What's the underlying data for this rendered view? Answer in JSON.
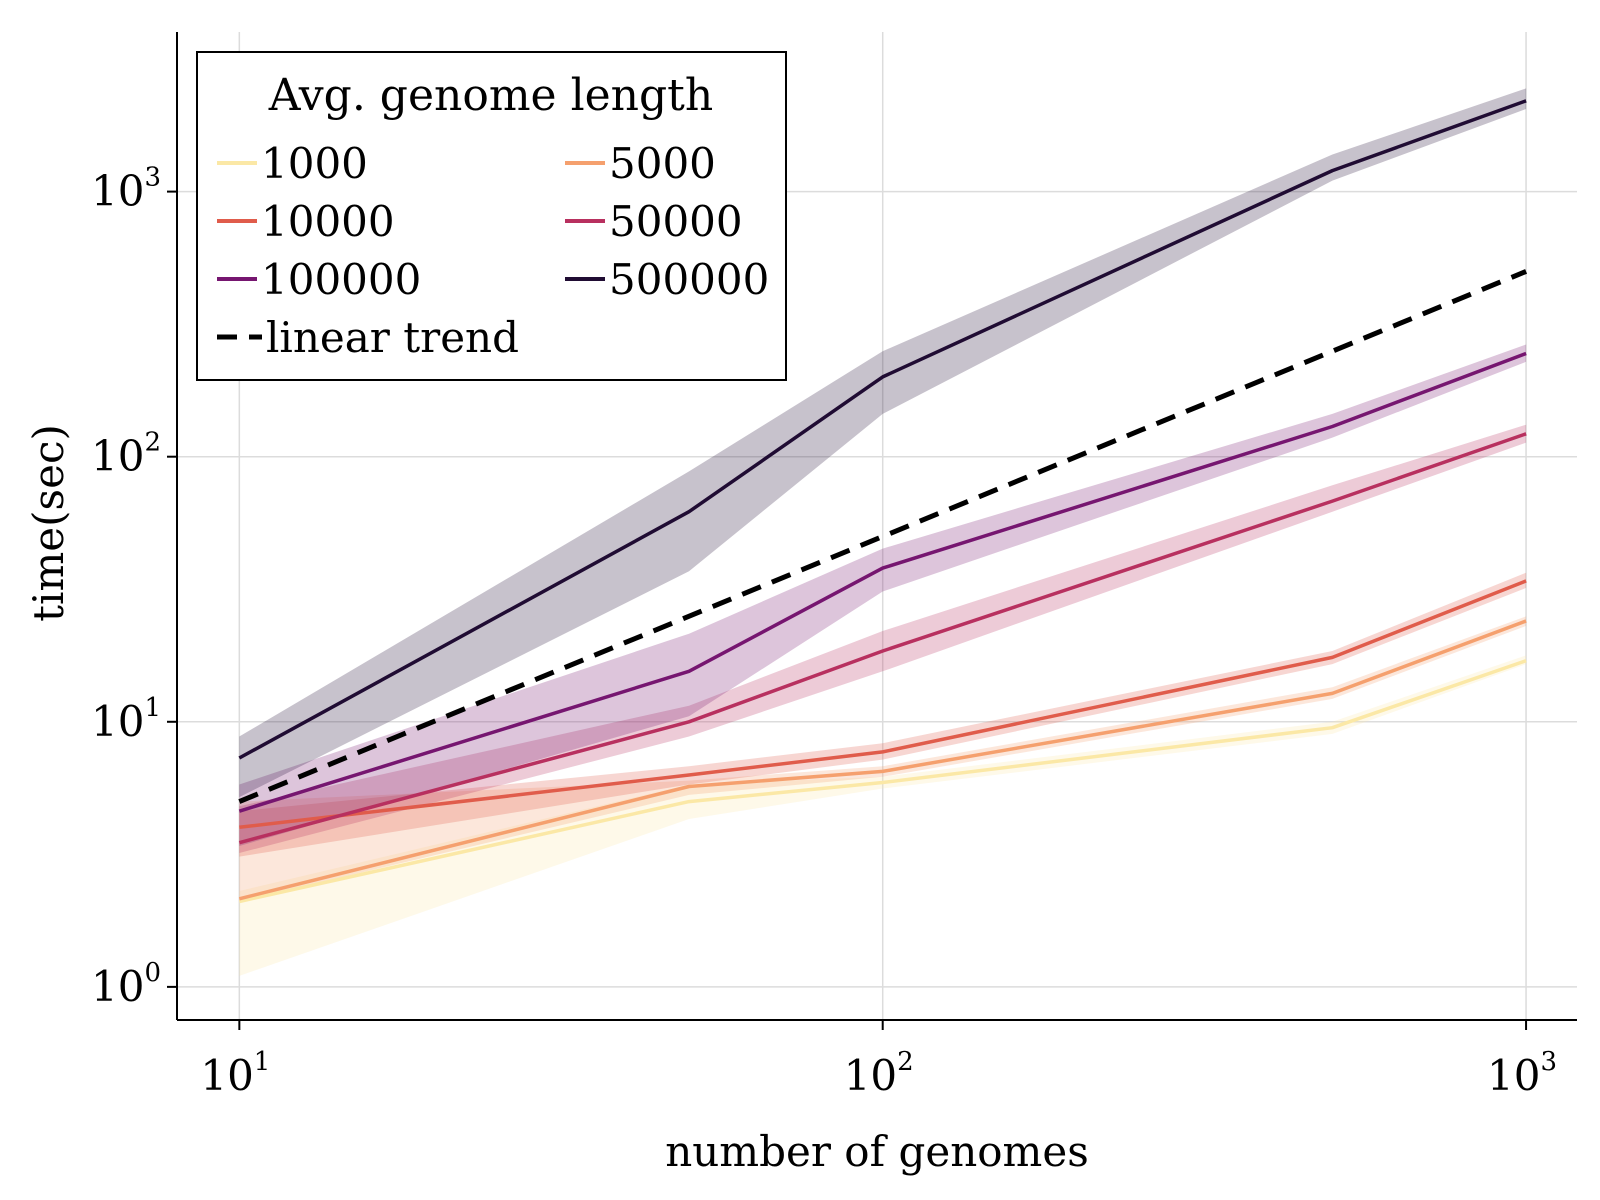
{
  "chart_data": {
    "type": "line",
    "xlabel": "number of genomes",
    "ylabel": "time(sec)",
    "xscale": "log",
    "yscale": "log",
    "xlim": [
      8,
      1200
    ],
    "ylim": [
      0.75,
      4000
    ],
    "grid": true,
    "x": [
      10,
      50,
      100,
      500,
      1000
    ],
    "x_ticks": [
      {
        "value": 10,
        "base": "10",
        "exp": "1"
      },
      {
        "value": 100,
        "base": "10",
        "exp": "2"
      },
      {
        "value": 1000,
        "base": "10",
        "exp": "3"
      }
    ],
    "y_ticks": [
      {
        "value": 1,
        "base": "10",
        "exp": "0"
      },
      {
        "value": 10,
        "base": "10",
        "exp": "1"
      },
      {
        "value": 100,
        "base": "10",
        "exp": "2"
      },
      {
        "value": 1000,
        "base": "10",
        "exp": "3"
      }
    ],
    "legend": {
      "title": "Avg. genome length",
      "placement": "top-left",
      "columns": 2
    },
    "series": [
      {
        "name": "1000",
        "color": "#fbe8a6",
        "values": [
          2.1,
          5.0,
          5.9,
          9.5,
          17
        ],
        "lower": [
          1.1,
          4.3,
          5.6,
          9.0,
          16.5
        ],
        "upper": [
          2.3,
          5.8,
          6.2,
          10.0,
          17.8
        ]
      },
      {
        "name": "5000",
        "color": "#f5a06e",
        "values": [
          2.15,
          5.7,
          6.5,
          12.8,
          24
        ],
        "lower": [
          2.1,
          5.3,
          6.2,
          12.2,
          23
        ],
        "upper": [
          5.0,
          6.0,
          6.8,
          13.5,
          25
        ]
      },
      {
        "name": "10000",
        "color": "#e05c4b",
        "values": [
          4.0,
          6.3,
          7.7,
          17.5,
          34
        ],
        "lower": [
          3.1,
          5.8,
          7.2,
          16.5,
          32
        ],
        "upper": [
          4.6,
          6.8,
          8.3,
          18.5,
          36.5
        ]
      },
      {
        "name": "50000",
        "color": "#b8305f",
        "values": [
          3.5,
          10.0,
          18.5,
          68,
          122
        ],
        "lower": [
          3.2,
          8.8,
          15.5,
          62,
          113
        ],
        "upper": [
          4.8,
          11.5,
          22,
          78,
          132
        ]
      },
      {
        "name": "100000",
        "color": "#761670",
        "values": [
          4.6,
          15.5,
          38,
          130,
          245
        ],
        "lower": [
          3.4,
          10.5,
          31,
          118,
          228
        ],
        "upper": [
          5.8,
          21.5,
          45,
          145,
          265
        ]
      },
      {
        "name": "500000",
        "color": "#200c33",
        "values": [
          7.3,
          62,
          200,
          1200,
          2200
        ],
        "lower": [
          5.2,
          37,
          145,
          1100,
          2050
        ],
        "upper": [
          8.8,
          88,
          250,
          1380,
          2450
        ]
      }
    ],
    "trend": {
      "name": "linear trend",
      "style": "dashed",
      "color": "#000000",
      "x": [
        10,
        1000
      ],
      "values": [
        5,
        500
      ]
    }
  }
}
